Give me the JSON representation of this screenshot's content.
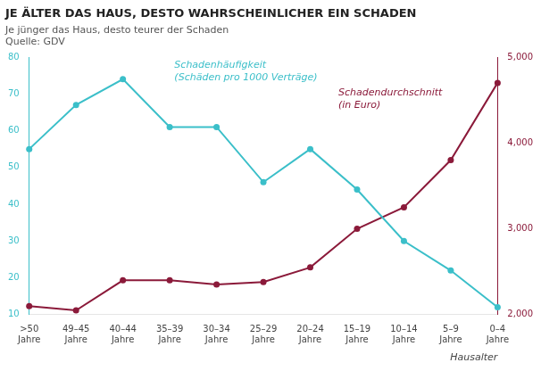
{
  "chart_data": {
    "type": "line",
    "title": "JE ÄLTER DAS HAUS, DESTO WAHRSCHEINLICHER EIN SCHADEN",
    "subtitle": "Je jünger das Haus, desto teurer der Schaden",
    "source": "Quelle: GDV",
    "xlabel": "Hausalter",
    "categories": [
      ">50\nJahre",
      "49–45\nJahre",
      "40–44\nJahre",
      "35–39\nJahre",
      "30–34\nJahre",
      "25–29\nJahre",
      "20–24\nJahre",
      "15–19\nJahre",
      "10–14\nJahre",
      "5–9\nJahre",
      "0–4\nJahre"
    ],
    "series": [
      {
        "name": "Schadenhäufigkeit\n(Schäden pro 1000 Verträge)",
        "color": "#3bbfc9",
        "marker": "circle",
        "values": [
          55,
          67,
          74,
          61,
          61,
          46,
          55,
          44,
          30,
          22,
          12
        ]
      },
      {
        "name": "Schadendurchschnitt\n(in Euro)",
        "color": "#8b1a3a",
        "marker": "circle",
        "axis": "y2",
        "values": [
          2100,
          2050,
          2400,
          2400,
          2350,
          2380,
          2550,
          3000,
          3250,
          3800,
          4700
        ]
      }
    ],
    "ylim": [
      10,
      80
    ],
    "yticks": [
      10,
      20,
      30,
      40,
      50,
      60,
      70,
      80
    ],
    "y2lim": [
      2000,
      5000
    ],
    "y2ticks": [
      2000,
      3000,
      4000,
      5000
    ],
    "grid": false
  }
}
